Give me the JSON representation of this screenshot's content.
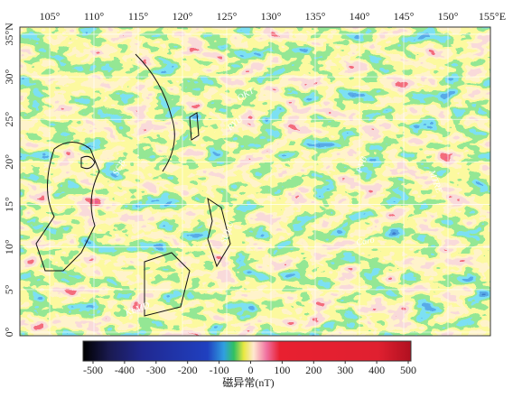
{
  "map": {
    "lon_ticks": [
      {
        "value": 105,
        "label": "105°"
      },
      {
        "value": 110,
        "label": "110°"
      },
      {
        "value": 115,
        "label": "115°"
      },
      {
        "value": 120,
        "label": "120°"
      },
      {
        "value": 125,
        "label": "125°"
      },
      {
        "value": 130,
        "label": "130°"
      },
      {
        "value": 135,
        "label": "135°"
      },
      {
        "value": 140,
        "label": "140°"
      },
      {
        "value": 145,
        "label": "145°"
      },
      {
        "value": 150,
        "label": "150°"
      },
      {
        "value": 155,
        "label": "155°E"
      }
    ],
    "lat_ticks": [
      {
        "value": 0,
        "label": "0°"
      },
      {
        "value": 5,
        "label": "5°"
      },
      {
        "value": 10,
        "label": "10°"
      },
      {
        "value": 15,
        "label": "15°"
      },
      {
        "value": 20,
        "label": "20°"
      },
      {
        "value": 25,
        "label": "25°"
      },
      {
        "value": 30,
        "label": "30°"
      },
      {
        "value": 35,
        "label": "35°N"
      }
    ],
    "regions": [
      "OKT",
      "RYU",
      "PVB",
      "MTRE",
      "SCB",
      "Caro",
      "SULU",
      "KLMD"
    ]
  },
  "colorbar": {
    "label": "磁异常(nT)",
    "ticks": [
      -500,
      -400,
      -300,
      -200,
      -100,
      0,
      100,
      200,
      300,
      400,
      500
    ]
  }
}
